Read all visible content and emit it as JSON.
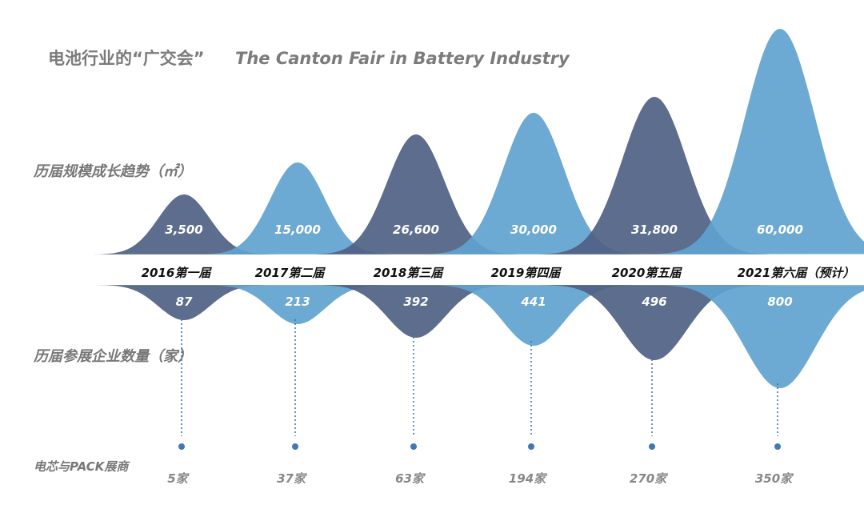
{
  "title": {
    "cn": "电池行业的“广交会”",
    "en": "The Canton Fair in Battery Industry"
  },
  "chart_data": {
    "type": "area",
    "categories": [
      "2016第一届",
      "2017第二届",
      "2018第三届",
      "2019第四届",
      "2020第五届",
      "2021第六届（预计）"
    ],
    "series": [
      {
        "name": "历届规模成长趋势（㎡）",
        "values": [
          3500,
          15000,
          26600,
          30000,
          31800,
          60000
        ],
        "labels": [
          "3,500",
          "15,000",
          "26,600",
          "30,000",
          "31,800",
          "60,000"
        ]
      },
      {
        "name": "历届参展企业数量（家）",
        "values": [
          87,
          213,
          392,
          441,
          496,
          800
        ],
        "labels": [
          "87",
          "213",
          "392",
          "441",
          "496",
          "800"
        ]
      },
      {
        "name": "电芯与PACK展商",
        "values": [
          5,
          37,
          63,
          194,
          270,
          350
        ],
        "labels": [
          "5家",
          "37家",
          "63家",
          "194家",
          "270家",
          "350家"
        ]
      }
    ],
    "colors": {
      "dark": "#4f6183",
      "light": "#5fa3cf"
    }
  }
}
